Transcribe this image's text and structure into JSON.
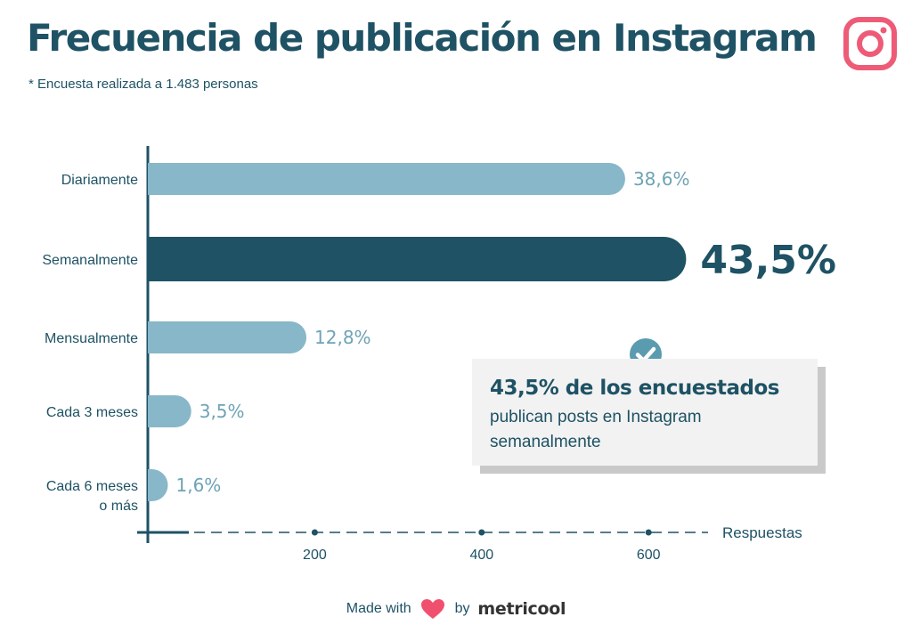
{
  "header": {
    "title": "Frecuencia de publicación en Instagram",
    "subtitle": "* Encuesta realizada a 1.483 personas",
    "logo_icon": "instagram-icon"
  },
  "colors": {
    "primary": "#1e5264",
    "bar_light": "#87b7c8",
    "label_light": "#6ea3b6",
    "instagram": "#ee5b77",
    "heart": "#f0506e",
    "callout_bg": "#f2f2f2",
    "check": "#5a9bb0"
  },
  "chart_data": {
    "type": "bar",
    "orientation": "horizontal",
    "title": "Frecuencia de publicación en Instagram",
    "xlabel": "Respuestas",
    "ylabel": "",
    "xlim": [
      0,
      700
    ],
    "xticks": [
      200,
      400,
      600
    ],
    "xtick_labels": [
      "200",
      "400",
      "600"
    ],
    "grid": false,
    "categories": [
      "Diariamente",
      "Semanalmente",
      "Mensualmente",
      "Cada 3 meses",
      "Cada 6 meses o más"
    ],
    "category_lines": [
      [
        "Diariamente"
      ],
      [
        "Semanalmente"
      ],
      [
        "Mensualmente"
      ],
      [
        "Cada 3 meses"
      ],
      [
        "Cada 6 meses",
        "o más"
      ]
    ],
    "values": [
      572,
      645,
      190,
      52,
      24
    ],
    "labels": [
      "38,6%",
      "43,5%",
      "12,8%",
      "3,5%",
      "1,6%"
    ],
    "highlight_index": 1
  },
  "callout": {
    "headline": "43,5% de los encuestados",
    "body": "publican posts en Instagram semanalmente",
    "icon": "check-circle-icon"
  },
  "footer": {
    "made_with": "Made with",
    "by": "by",
    "brand": "metricool",
    "heart_icon": "heart-icon"
  }
}
